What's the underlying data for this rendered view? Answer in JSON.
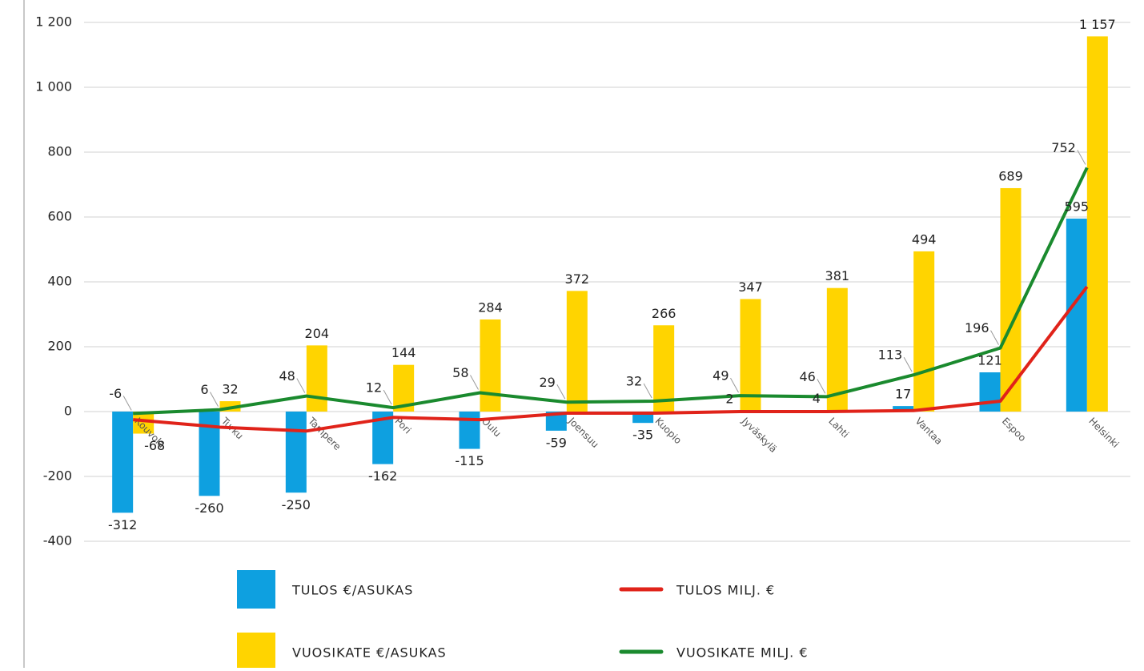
{
  "chart_data": {
    "type": "bar",
    "categories": [
      "Kouvola",
      "Turku",
      "Tampere",
      "Pori",
      "Oulu",
      "Joensuu",
      "Kuopio",
      "Jyväskylä",
      "Lahti",
      "Vantaa",
      "Espoo",
      "Helsinki"
    ],
    "series": [
      {
        "name": "TULOS €/ASUKAS",
        "type": "bar",
        "color": "#0ea0e0",
        "data_labels": true,
        "values": [
          -312,
          -260,
          -250,
          -162,
          -115,
          -59,
          -35,
          2,
          4,
          17,
          121,
          595
        ]
      },
      {
        "name": "VUOSIKATE €/ASUKAS",
        "type": "bar",
        "color": "#ffd400",
        "data_labels": true,
        "values": [
          -68,
          32,
          204,
          144,
          284,
          372,
          266,
          347,
          381,
          494,
          689,
          1157
        ],
        "value_labels": [
          "-68",
          "32",
          "204",
          "144",
          "284",
          "372",
          "266",
          "347",
          "381",
          "494",
          "689",
          "1 157"
        ]
      },
      {
        "name": "TULOS MILJ. €",
        "type": "line",
        "color": "#e0231a",
        "data_labels": false,
        "values": [
          -25,
          -48,
          -60,
          -18,
          -25,
          -5,
          -5,
          0,
          0,
          3,
          32,
          385
        ]
      },
      {
        "name": "VUOSIKATE MILJ. €",
        "type": "line",
        "color": "#1a8a2e",
        "data_labels": true,
        "values": [
          -6,
          6,
          48,
          12,
          58,
          29,
          32,
          49,
          46,
          113,
          196,
          752
        ]
      }
    ],
    "ylim": [
      -400,
      1200
    ],
    "yticks": [
      -400,
      -200,
      0,
      200,
      400,
      600,
      800,
      {
        "value": 1000,
        "label": "1 000"
      },
      {
        "value": 1200,
        "label": "1 200"
      }
    ],
    "grid": true
  }
}
